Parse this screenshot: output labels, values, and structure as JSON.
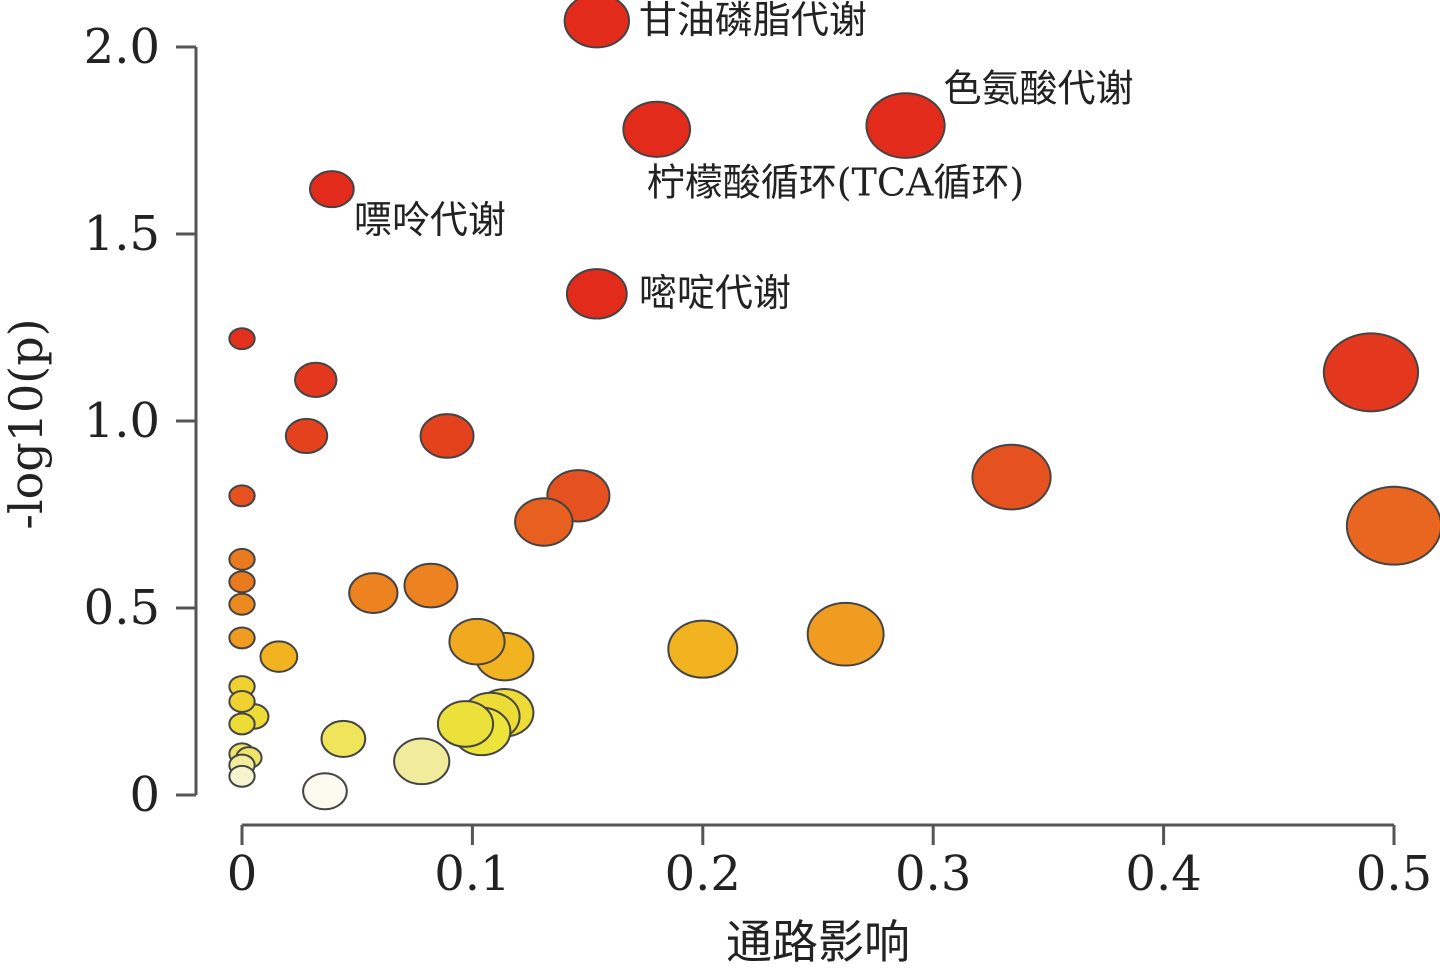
{
  "chart_data": {
    "type": "scatter",
    "title": "",
    "xlabel": "通路影响",
    "ylabel": "-log10(p)",
    "xlim": [
      0,
      0.5
    ],
    "ylim": [
      0,
      2.0
    ],
    "xticks": [
      "0",
      "0.1",
      "0.2",
      "0.3",
      "0.4",
      "0.5"
    ],
    "yticks": [
      "0",
      "0.5",
      "1.0",
      "1.5",
      "2.0"
    ],
    "grid": false,
    "legend": "none",
    "color_scale": "white-yellow-orange-red by -log10(p)",
    "points": [
      {
        "x": 0.154,
        "y": 2.07,
        "r": 28,
        "color": "#e32b1c",
        "label": "甘油磷脂代谢"
      },
      {
        "x": 0.288,
        "y": 1.79,
        "r": 34,
        "color": "#e32b1c",
        "label": "色氨酸代谢"
      },
      {
        "x": 0.18,
        "y": 1.78,
        "r": 29,
        "color": "#e32b1c",
        "label": "柠檬酸循环(TCA循环)"
      },
      {
        "x": 0.039,
        "y": 1.62,
        "r": 19,
        "color": "#e32b1c",
        "label": "嘌呤代谢"
      },
      {
        "x": 0.154,
        "y": 1.34,
        "r": 26,
        "color": "#e32b1c",
        "label": "嘧啶代谢"
      },
      {
        "x": 0.0,
        "y": 1.22,
        "r": 11,
        "color": "#e3301d"
      },
      {
        "x": 0.49,
        "y": 1.13,
        "r": 41,
        "color": "#e3381d"
      },
      {
        "x": 0.032,
        "y": 1.11,
        "r": 18,
        "color": "#e3381d"
      },
      {
        "x": 0.028,
        "y": 0.96,
        "r": 18,
        "color": "#e3421d"
      },
      {
        "x": 0.089,
        "y": 0.96,
        "r": 23,
        "color": "#e3421d"
      },
      {
        "x": 0.334,
        "y": 0.85,
        "r": 34,
        "color": "#e5521f"
      },
      {
        "x": 0.0,
        "y": 0.8,
        "r": 11,
        "color": "#e5521f"
      },
      {
        "x": 0.146,
        "y": 0.8,
        "r": 27,
        "color": "#e5521f"
      },
      {
        "x": 0.131,
        "y": 0.73,
        "r": 25,
        "color": "#e8601f"
      },
      {
        "x": 0.5,
        "y": 0.72,
        "r": 41,
        "color": "#e8661f"
      },
      {
        "x": 0.0,
        "y": 0.63,
        "r": 11,
        "color": "#ea7a20"
      },
      {
        "x": 0.0,
        "y": 0.57,
        "r": 11,
        "color": "#ea7a20"
      },
      {
        "x": 0.082,
        "y": 0.56,
        "r": 23,
        "color": "#ec8220"
      },
      {
        "x": 0.057,
        "y": 0.54,
        "r": 21,
        "color": "#ec8220"
      },
      {
        "x": 0.0,
        "y": 0.51,
        "r": 11,
        "color": "#ec8a20"
      },
      {
        "x": 0.262,
        "y": 0.43,
        "r": 33,
        "color": "#ef9c20"
      },
      {
        "x": 0.0,
        "y": 0.42,
        "r": 11,
        "color": "#ef9c20"
      },
      {
        "x": 0.102,
        "y": 0.41,
        "r": 24,
        "color": "#f1aa20"
      },
      {
        "x": 0.2,
        "y": 0.39,
        "r": 30,
        "color": "#f1b320"
      },
      {
        "x": 0.114,
        "y": 0.37,
        "r": 25,
        "color": "#f1b320"
      },
      {
        "x": 0.016,
        "y": 0.37,
        "r": 16,
        "color": "#f1b320"
      },
      {
        "x": 0.0,
        "y": 0.29,
        "r": 11,
        "color": "#efd230"
      },
      {
        "x": 0.0,
        "y": 0.25,
        "r": 11,
        "color": "#efd230"
      },
      {
        "x": 0.114,
        "y": 0.22,
        "r": 25,
        "color": "#ecdc35"
      },
      {
        "x": 0.108,
        "y": 0.21,
        "r": 25,
        "color": "#ecdc35"
      },
      {
        "x": 0.005,
        "y": 0.21,
        "r": 13,
        "color": "#ecdc35"
      },
      {
        "x": 0.0,
        "y": 0.19,
        "r": 11,
        "color": "#ecdc35"
      },
      {
        "x": 0.097,
        "y": 0.19,
        "r": 24,
        "color": "#ece03a"
      },
      {
        "x": 0.104,
        "y": 0.17,
        "r": 25,
        "color": "#ece43a"
      },
      {
        "x": 0.044,
        "y": 0.15,
        "r": 19,
        "color": "#efe45a"
      },
      {
        "x": 0.0,
        "y": 0.11,
        "r": 11,
        "color": "#efe46a"
      },
      {
        "x": 0.003,
        "y": 0.1,
        "r": 11,
        "color": "#efe46a"
      },
      {
        "x": 0.078,
        "y": 0.09,
        "r": 24,
        "color": "#f1ec9c"
      },
      {
        "x": 0.0,
        "y": 0.08,
        "r": 11,
        "color": "#f1ec9c"
      },
      {
        "x": 0.0,
        "y": 0.05,
        "r": 11,
        "color": "#f6f3cf"
      },
      {
        "x": 0.036,
        "y": 0.01,
        "r": 19,
        "color": "#fbfbf0"
      }
    ]
  }
}
